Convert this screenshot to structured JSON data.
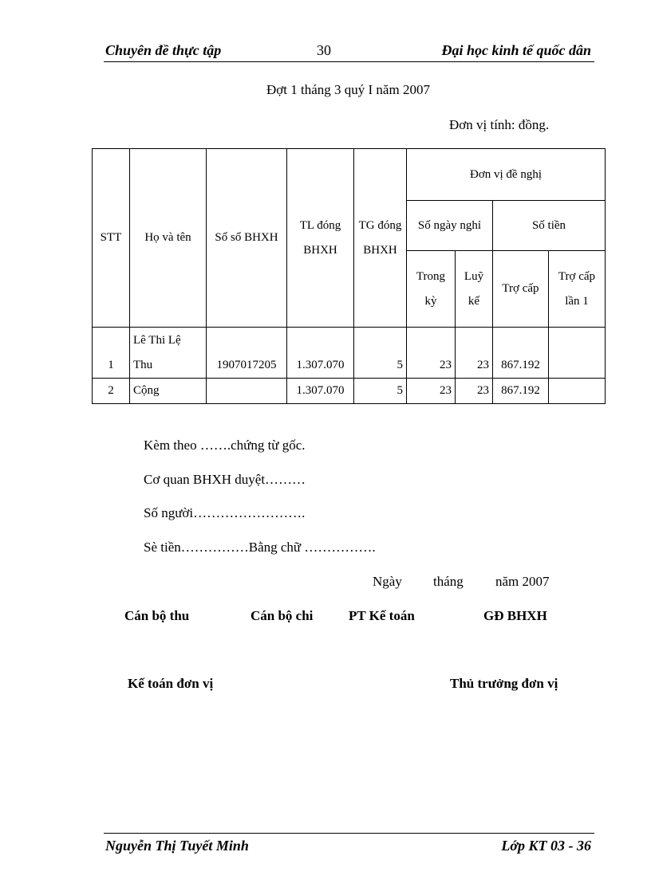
{
  "header": {
    "left": "Chuyên đề thực tập",
    "page_number": "30",
    "right": "Đại học kinh tế quốc dân"
  },
  "title": "Đợt 1 tháng 3 quý I năm 2007",
  "unit": "Đơn vị tính: đồng.",
  "table": {
    "headers": {
      "stt": "STT",
      "name": "Họ và tên",
      "book": "Số sổ BHXH",
      "salary": "TL  đóng BHXH",
      "time": "TG đóng BHXH",
      "proposal": "Đơn vị đề nghị",
      "days_off": "Số ngày nghỉ",
      "amount": "Số tiền",
      "in_period": "Trong kỳ",
      "cumulative": "Luỹ kế",
      "allowance": "Trợ cấp",
      "allowance_1": "Trợ cấp lần 1"
    },
    "rows": [
      {
        "stt": "1",
        "name": "Lê Thi Lệ Thu",
        "book": "1907017205",
        "salary": "1.307.070",
        "time": "5",
        "in_period": "23",
        "cumulative": "23",
        "allowance": "867.192",
        "allowance_1": ""
      },
      {
        "stt": "2",
        "name": "Cộng",
        "book": "",
        "salary": "1.307.070",
        "time": "5",
        "in_period": "23",
        "cumulative": "23",
        "allowance": "867.192",
        "allowance_1": ""
      }
    ]
  },
  "notes": [
    "Kèm theo …….chứng từ gốc.",
    "Cơ quan BHXH  duyệt………",
    "Số người…………………….",
    "Sè tiền……………Bằng chữ ……………."
  ],
  "date": {
    "day": "Ngày",
    "month": "tháng",
    "year": "năm 2007"
  },
  "signatures": [
    "Cán bộ thu",
    "Cán bộ chi",
    "PT Kế toán",
    "GĐ BHXH",
    "Kế toán đơn vị",
    "Thủ trưởng đơn vị"
  ],
  "footer": {
    "left": "Nguyễn Thị Tuyết Minh",
    "right": "Lớp KT 03 - 36"
  }
}
